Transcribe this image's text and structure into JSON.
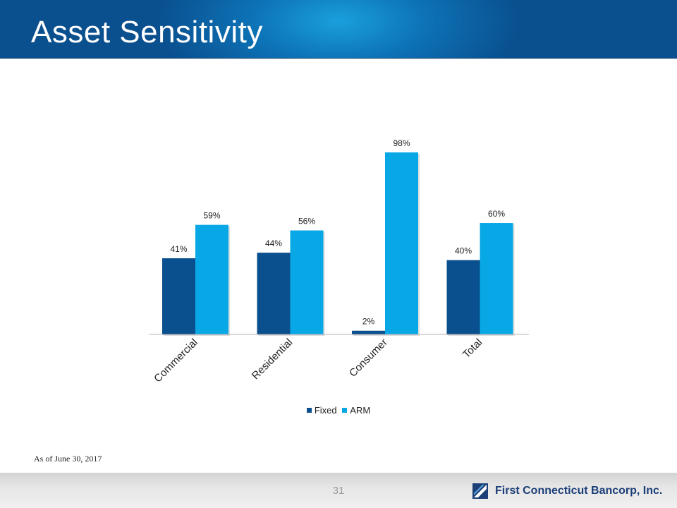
{
  "slide": {
    "title": "Asset Sensitivity",
    "footnote": "As of June 30, 2017",
    "page_number": "31",
    "brand_name": "First Connecticut Bancorp, Inc."
  },
  "colors": {
    "fixed": "#0a4f8e",
    "arm": "#08a8e6",
    "header": "#0a4f8e"
  },
  "chart_data": {
    "type": "bar",
    "title": "",
    "xlabel": "",
    "ylabel": "",
    "categories": [
      "Commercial",
      "Residential",
      "Consumer",
      "Total"
    ],
    "series": [
      {
        "name": "Fixed",
        "values": [
          41,
          44,
          2,
          40
        ],
        "labels": [
          "41%",
          "44%",
          "2%",
          "40%"
        ]
      },
      {
        "name": "ARM",
        "values": [
          59,
          56,
          98,
          60
        ],
        "labels": [
          "59%",
          "56%",
          "98%",
          "60%"
        ]
      }
    ],
    "ylim": [
      0,
      100
    ],
    "grid": false,
    "legend": "bottom"
  }
}
